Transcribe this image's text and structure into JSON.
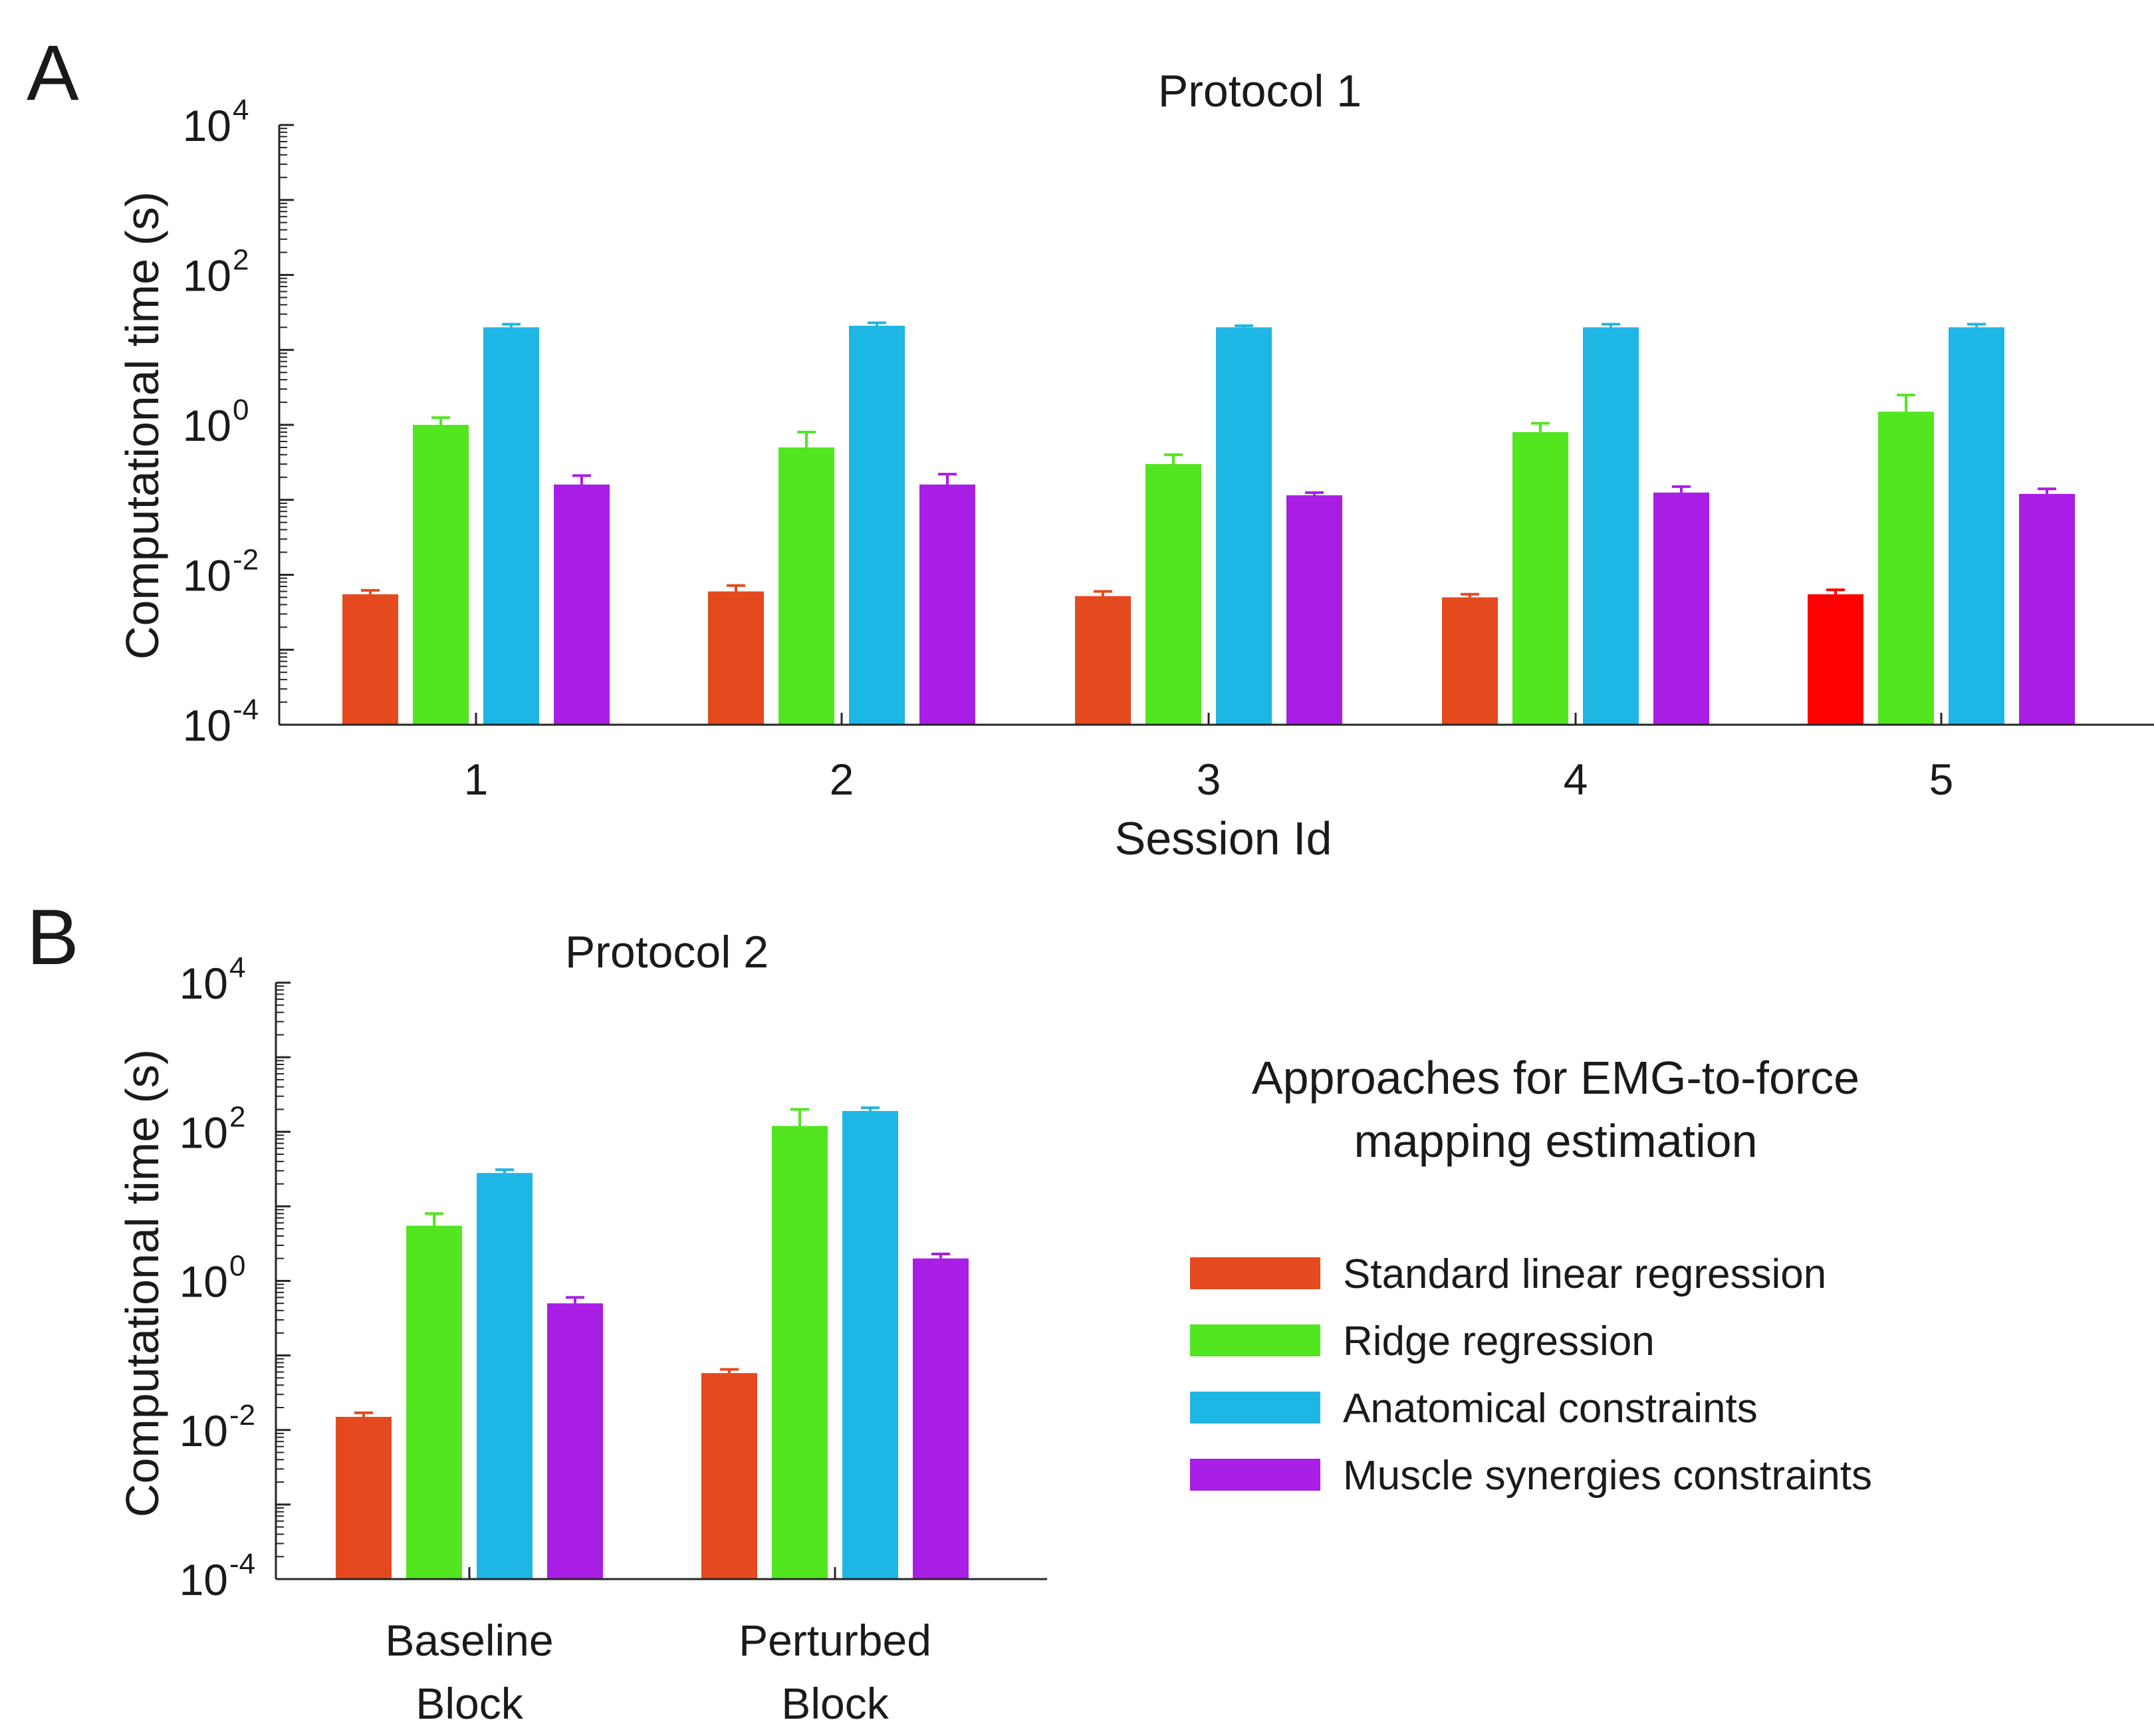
{
  "panels": {
    "a": {
      "letter": "A"
    },
    "b": {
      "letter": "B"
    }
  },
  "legend": {
    "title_line1": "Approaches for EMG-to-force",
    "title_line2": "mapping estimation",
    "items": [
      {
        "label": "Standard linear regression",
        "color": "#E44A1E"
      },
      {
        "label": "Ridge regression",
        "color": "#52E621"
      },
      {
        "label": "Anatomical constraints",
        "color": "#1EB6E4"
      },
      {
        "label": "Muscle synergies constraints",
        "color": "#A81EE4"
      }
    ]
  },
  "chart_data": [
    {
      "type": "bar",
      "title": "Protocol 1",
      "xlabel": "Session Id",
      "ylabel": "Computational time (s)",
      "yscale": "log",
      "ylim": [
        0.0001,
        10000
      ],
      "yticks": [
        {
          "base": "10",
          "exp": "-4"
        },
        {
          "base": "10",
          "exp": "-2"
        },
        {
          "base": "10",
          "exp": "0"
        },
        {
          "base": "10",
          "exp": "2"
        },
        {
          "base": "10",
          "exp": "4"
        }
      ],
      "categories": [
        {
          "line1": "1",
          "line2": ""
        },
        {
          "line1": "2",
          "line2": ""
        },
        {
          "line1": "3",
          "line2": ""
        },
        {
          "line1": "4",
          "line2": ""
        },
        {
          "line1": "5",
          "line2": ""
        }
      ],
      "series": [
        {
          "name": "Standard linear regression",
          "color": "#E44A1E",
          "values": [
            0.0055,
            0.006,
            0.0052,
            0.005,
            0.0055
          ],
          "errors": [
            0.0062,
            0.0072,
            0.006,
            0.0055,
            0.0063
          ],
          "bar_colors": [
            "#E44A1E",
            "#E44A1E",
            "#E44A1E",
            "#E44A1E",
            "#FF0000"
          ]
        },
        {
          "name": "Ridge regression",
          "color": "#52E621",
          "values": [
            1.0,
            0.5,
            0.3,
            0.8,
            1.5
          ],
          "errors": [
            1.25,
            0.8,
            0.4,
            1.05,
            2.5
          ]
        },
        {
          "name": "Anatomical constraints",
          "color": "#1EB6E4",
          "values": [
            20,
            21,
            20,
            20,
            20
          ],
          "errors": [
            22,
            23,
            21,
            22,
            22
          ]
        },
        {
          "name": "Muscle synergies constraints",
          "color": "#A81EE4",
          "values": [
            0.16,
            0.16,
            0.115,
            0.125,
            0.12
          ],
          "errors": [
            0.21,
            0.22,
            0.125,
            0.15,
            0.14
          ]
        }
      ]
    },
    {
      "type": "bar",
      "title": "Protocol 2",
      "xlabel": "",
      "ylabel": "Computational time (s)",
      "yscale": "log",
      "ylim": [
        0.0001,
        10000
      ],
      "yticks": [
        {
          "base": "10",
          "exp": "-4"
        },
        {
          "base": "10",
          "exp": "-2"
        },
        {
          "base": "10",
          "exp": "0"
        },
        {
          "base": "10",
          "exp": "2"
        },
        {
          "base": "10",
          "exp": "4"
        }
      ],
      "categories": [
        {
          "line1": "Baseline",
          "line2": "Block"
        },
        {
          "line1": "Perturbed",
          "line2": "Block"
        }
      ],
      "series": [
        {
          "name": "Standard linear regression",
          "color": "#E44A1E",
          "values": [
            0.015,
            0.058
          ],
          "errors": [
            0.017,
            0.065
          ]
        },
        {
          "name": "Ridge regression",
          "color": "#52E621",
          "values": [
            5.5,
            120
          ],
          "errors": [
            8,
            200
          ]
        },
        {
          "name": "Anatomical constraints",
          "color": "#1EB6E4",
          "values": [
            28,
            190
          ],
          "errors": [
            31,
            210
          ]
        },
        {
          "name": "Muscle synergies constraints",
          "color": "#A81EE4",
          "values": [
            0.5,
            2.0
          ],
          "errors": [
            0.6,
            2.3
          ]
        }
      ]
    }
  ]
}
